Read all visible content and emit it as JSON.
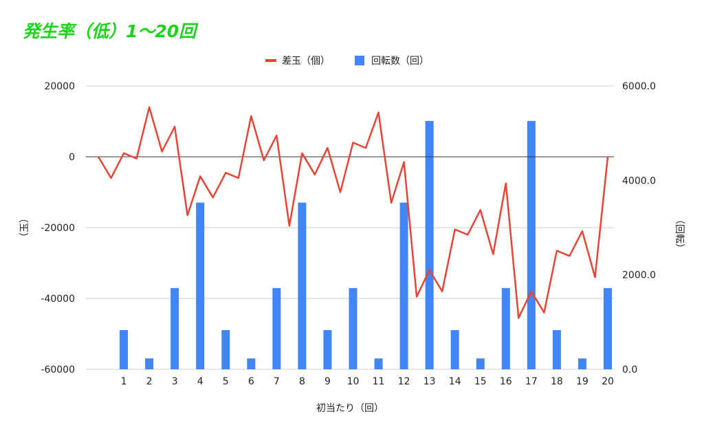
{
  "chart_data": {
    "type": "combo-bar-line",
    "title": "発生率（低）1〜20回",
    "xlabel": "初当たり（回）",
    "ylabel_left": "（玉）",
    "ylabel_right": "（回転）",
    "categories": [
      "1",
      "2",
      "3",
      "4",
      "5",
      "6",
      "7",
      "8",
      "9",
      "10",
      "11",
      "12",
      "13",
      "14",
      "15",
      "16",
      "17",
      "18",
      "19",
      "20"
    ],
    "y_left": {
      "min": -60000,
      "max": 20000,
      "ticks": [
        "20000",
        "0",
        "-20000",
        "-40000",
        "-60000"
      ]
    },
    "y_right": {
      "min": 0,
      "max": 6000,
      "ticks": [
        "6000.0",
        "4000.0",
        "2000.0",
        "0.0"
      ]
    },
    "legend_position": "top",
    "grid": true,
    "series": [
      {
        "name": "差玉（個）",
        "type": "line",
        "axis": "left",
        "color": "#ea4335",
        "x": [
          0,
          0.5,
          1,
          1.5,
          2,
          2.5,
          3,
          3.5,
          4,
          4.5,
          5,
          5.5,
          6,
          6.5,
          7,
          7.5,
          8,
          8.5,
          9,
          9.5,
          10,
          10.5,
          11,
          11.5,
          12,
          12.5,
          13,
          13.5,
          14,
          14.5,
          15,
          15.5,
          16,
          16.5,
          17,
          17.5,
          18,
          18.5,
          19,
          19.5,
          20
        ],
        "values": [
          0,
          -6000,
          1000,
          -500,
          14000,
          1500,
          8500,
          -16500,
          -5500,
          -11500,
          -4500,
          -6000,
          11500,
          -1000,
          6000,
          -19500,
          1000,
          -5000,
          2500,
          -10000,
          4000,
          2500,
          12500,
          -13000,
          -1500,
          -39500,
          -32000,
          -38000,
          -20500,
          -22000,
          -15000,
          -27500,
          -7500,
          -45500,
          -38000,
          -44000,
          -26500,
          -28000,
          -21000,
          -34000,
          0
        ]
      },
      {
        "name": "回転数（回）",
        "type": "bar",
        "axis": "right",
        "color": "#4285f4",
        "values": [
          830,
          230,
          1720,
          3530,
          830,
          230,
          1720,
          3530,
          830,
          1720,
          230,
          3530,
          5260,
          830,
          230,
          1720,
          5260,
          830,
          230,
          1720
        ]
      }
    ]
  }
}
